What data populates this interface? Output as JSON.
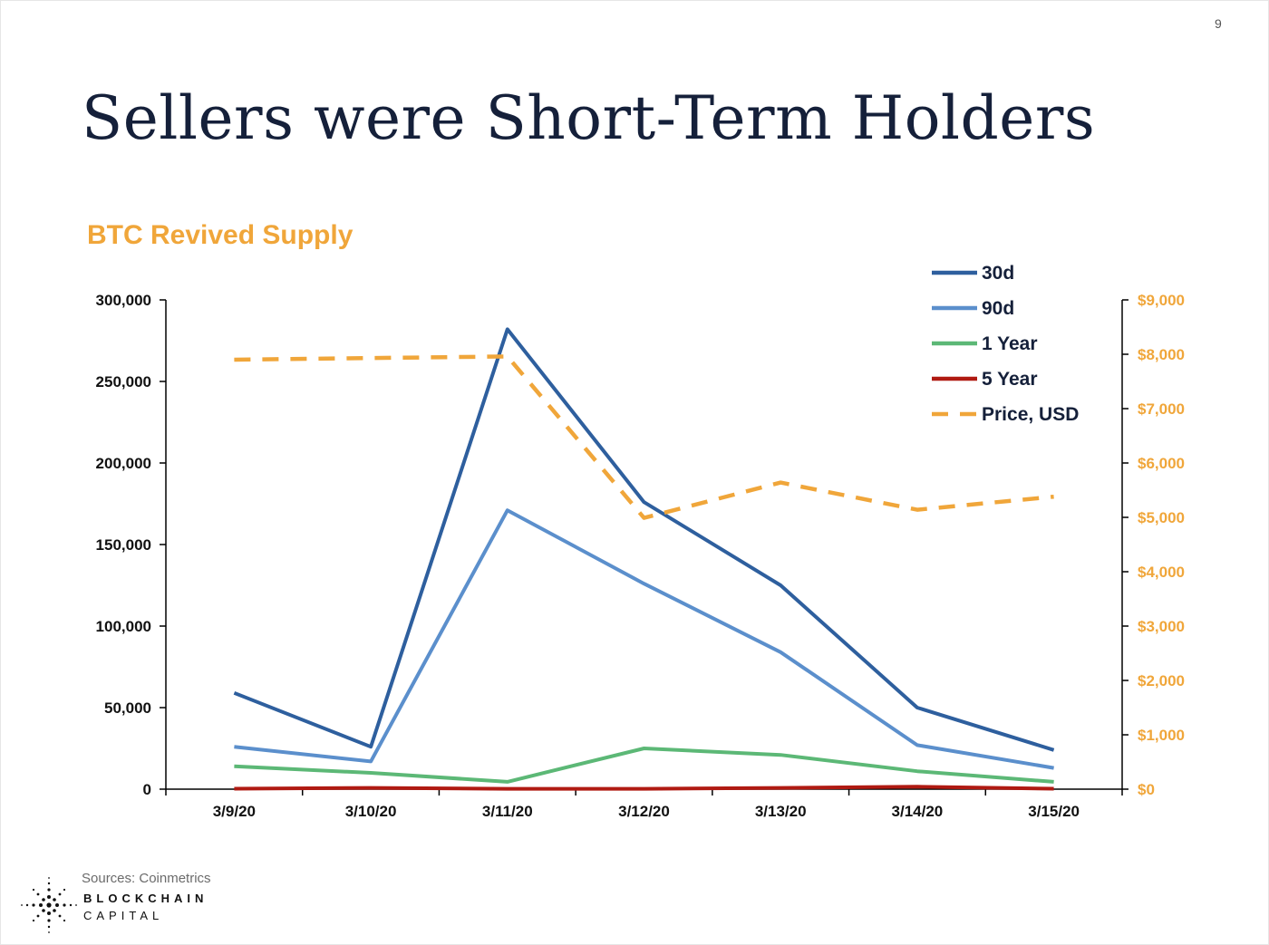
{
  "page_number": "9",
  "slide_title": "Sellers were Short-Term Holders",
  "source": "Sources: Coinmetrics",
  "logo": {
    "name": "BLOCKCHAIN CAPITAL",
    "line1": "BLOCKCHAIN",
    "line2": "CAPITAL"
  },
  "chart_data": {
    "type": "line",
    "title": "BTC Revived Supply",
    "xlabel": "",
    "ylabel": "",
    "categories": [
      "3/9/20",
      "3/10/20",
      "3/11/20",
      "3/12/20",
      "3/13/20",
      "3/14/20",
      "3/15/20"
    ],
    "y_left": {
      "range": [
        0,
        300000
      ],
      "ticks": [
        0,
        50000,
        100000,
        150000,
        200000,
        250000,
        300000
      ],
      "tick_labels": [
        "0",
        "50,000",
        "100,000",
        "150,000",
        "200,000",
        "250,000",
        "300,000"
      ]
    },
    "y_right": {
      "range": [
        0,
        9000
      ],
      "ticks": [
        0,
        1000,
        2000,
        3000,
        4000,
        5000,
        6000,
        7000,
        8000,
        9000
      ],
      "tick_labels": [
        "$0",
        "$1,000",
        "$2,000",
        "$3,000",
        "$4,000",
        "$5,000",
        "$6,000",
        "$7,000",
        "$8,000",
        "$9,000"
      ],
      "color": "#f0a63a"
    },
    "grid": false,
    "legend_position": "top-right",
    "series": [
      {
        "name": "30d",
        "axis": "left",
        "color": "#2e5f9e",
        "dash": false,
        "values": [
          59000,
          26000,
          282000,
          176000,
          125000,
          50000,
          24000
        ]
      },
      {
        "name": "90d",
        "axis": "left",
        "color": "#5b8fcc",
        "dash": false,
        "values": [
          26000,
          17000,
          171000,
          126000,
          84000,
          27000,
          13000
        ]
      },
      {
        "name": "1 Year",
        "axis": "left",
        "color": "#5cb876",
        "dash": false,
        "values": [
          14000,
          10000,
          4500,
          25000,
          21000,
          11000,
          4500
        ]
      },
      {
        "name": "5 Year",
        "axis": "left",
        "color": "#b01a12",
        "dash": false,
        "values": [
          300,
          800,
          200,
          200,
          800,
          1500,
          300
        ]
      },
      {
        "name": "Price, USD",
        "axis": "right",
        "color": "#f0a63a",
        "dash": true,
        "values": [
          7900,
          7930,
          7960,
          4990,
          5640,
          5140,
          5380
        ]
      }
    ]
  }
}
